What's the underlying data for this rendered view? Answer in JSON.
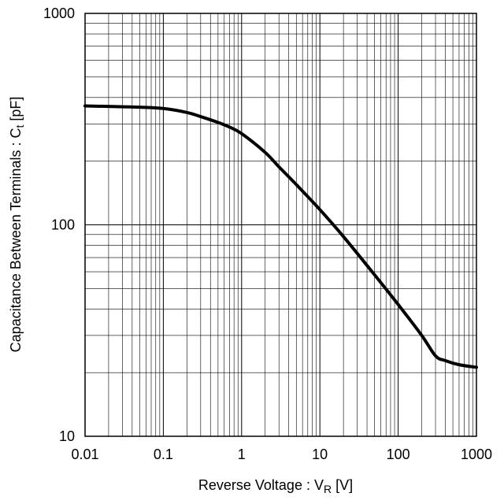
{
  "chart_data": {
    "type": "line",
    "x_scale": "log",
    "y_scale": "log",
    "xlim": [
      0.01,
      1000
    ],
    "ylim": [
      10,
      1000
    ],
    "grid": true,
    "x_ticks": [
      "0.01",
      "0.1",
      "1",
      "10",
      "100",
      "1000"
    ],
    "y_ticks": [
      "10",
      "100",
      "1000"
    ],
    "xlabel": {
      "main": "Reverse Voltage : V",
      "sub": "R",
      "unit": " [V]"
    },
    "ylabel": {
      "main": "Capacitance Between Terminals : C",
      "sub": "t",
      "unit": " [pF]"
    },
    "series": [
      {
        "x": [
          0.01,
          0.02,
          0.05,
          0.1,
          0.2,
          0.3,
          0.5,
          0.7,
          1,
          2,
          3,
          5,
          10,
          20,
          50,
          100,
          200,
          300,
          400,
          600,
          1000
        ],
        "y": [
          365,
          363,
          360,
          355,
          340,
          325,
          305,
          290,
          270,
          220,
          188,
          155,
          118,
          88,
          58,
          42,
          30,
          24,
          22.8,
          21.8,
          21.2
        ]
      }
    ]
  }
}
